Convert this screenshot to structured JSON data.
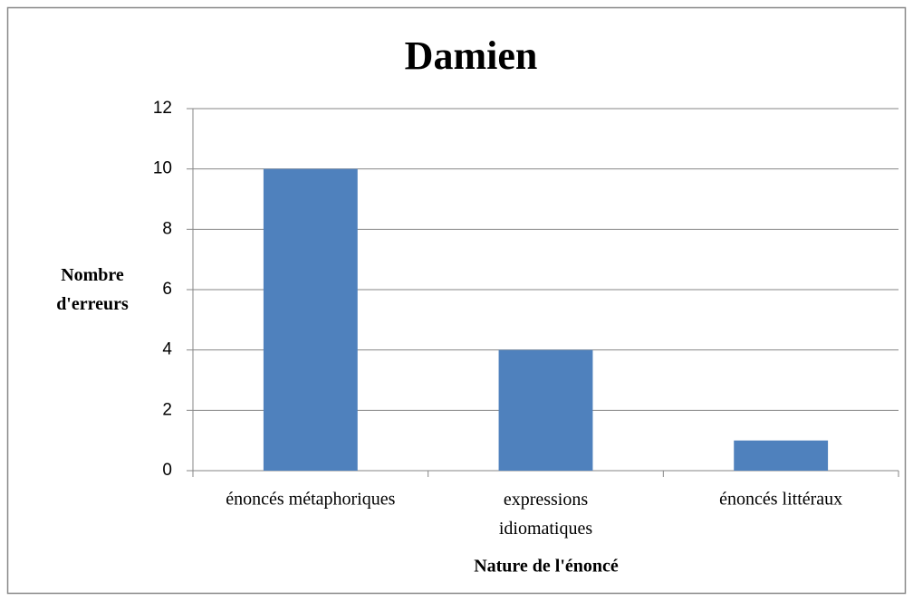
{
  "chart_data": {
    "type": "bar",
    "title": "Damien",
    "y_label": "Nombre d'erreurs",
    "x_label": "Nature de l'énoncé",
    "categories": [
      "énoncés métaphoriques",
      "expressions idiomatiques",
      "énoncés littéraux"
    ],
    "values": [
      10,
      4,
      1
    ],
    "color": "#4f81bd",
    "ylim": [
      0,
      12
    ],
    "yticks": [
      0,
      2,
      4,
      6,
      8,
      10,
      12
    ],
    "grid": true
  }
}
